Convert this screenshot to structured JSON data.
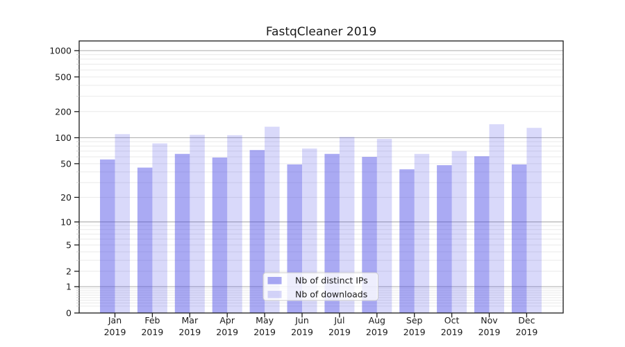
{
  "chart_data": {
    "type": "bar",
    "title": "FastqCleaner 2019",
    "xlabel": "",
    "ylabel": "",
    "y_scale": "log1p",
    "ylim": [
      0,
      1300
    ],
    "grid": "major horizontal gridlines at decades (1,10,100,1000), light minor gridlines at 2-9 log steps",
    "legend_position": "lower center inside plot",
    "y_tick_values": [
      0,
      1,
      2,
      5,
      10,
      20,
      50,
      100,
      200,
      500,
      1000
    ],
    "y_tick_labels": [
      "0",
      "1",
      "2",
      "5",
      "10",
      "20",
      "50",
      "100",
      "200",
      "500",
      "1000"
    ],
    "categories": [
      {
        "month": "Jan",
        "year": "2019"
      },
      {
        "month": "Feb",
        "year": "2019"
      },
      {
        "month": "Mar",
        "year": "2019"
      },
      {
        "month": "Apr",
        "year": "2019"
      },
      {
        "month": "May",
        "year": "2019"
      },
      {
        "month": "Jun",
        "year": "2019"
      },
      {
        "month": "Jul",
        "year": "2019"
      },
      {
        "month": "Aug",
        "year": "2019"
      },
      {
        "month": "Sep",
        "year": "2019"
      },
      {
        "month": "Oct",
        "year": "2019"
      },
      {
        "month": "Nov",
        "year": "2019"
      },
      {
        "month": "Dec",
        "year": "2019"
      }
    ],
    "series": [
      {
        "name": "Nb of distinct IPs",
        "values": [
          56,
          45,
          65,
          59,
          72,
          49,
          65,
          60,
          43,
          48,
          61,
          49
        ],
        "fill": "rgba(66,66,228,0.45)"
      },
      {
        "name": "Nb of downloads",
        "values": [
          110,
          86,
          108,
          107,
          134,
          75,
          102,
          97,
          65,
          70,
          143,
          130
        ],
        "fill": "rgba(66,66,228,0.20)"
      }
    ],
    "colors": {
      "bar_base": "#4242e4",
      "major_grid": "#b3b3b3",
      "minor_grid": "#e9e9e9",
      "axis": "#1a1a1a",
      "text": "#1a1a1a",
      "legend_bg": "rgba(255,255,255,0.8)",
      "legend_border": "#cccccc"
    }
  }
}
